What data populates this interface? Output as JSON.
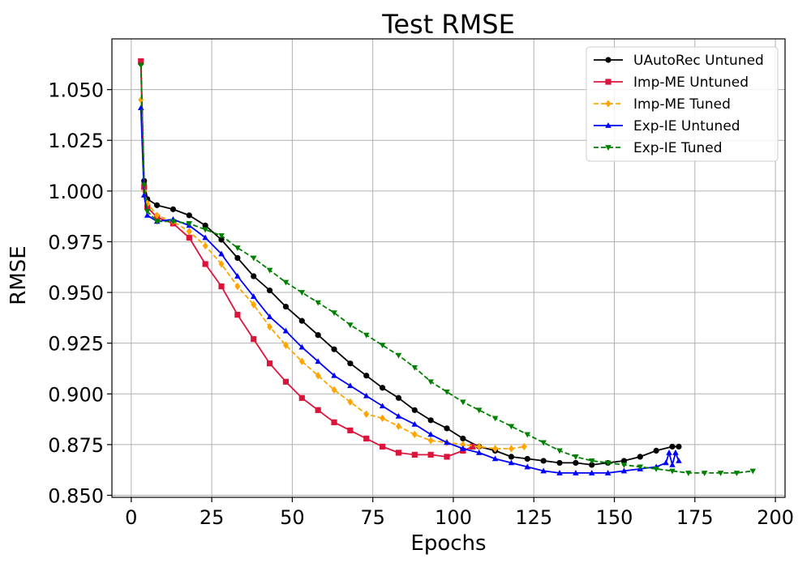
{
  "chart_data": {
    "type": "line",
    "title": "Test RMSE",
    "xlabel": "Epochs",
    "ylabel": "RMSE",
    "xlim": [
      -6,
      203
    ],
    "ylim": [
      0.849,
      1.075
    ],
    "xticks": [
      0,
      25,
      50,
      75,
      100,
      125,
      150,
      175,
      200
    ],
    "xtick_labels": [
      "0",
      "25",
      "50",
      "75",
      "100",
      "125",
      "150",
      "175",
      "200"
    ],
    "yticks": [
      0.85,
      0.875,
      0.9,
      0.925,
      0.95,
      0.975,
      1.0,
      1.025,
      1.05
    ],
    "ytick_labels": [
      "0.850",
      "0.875",
      "0.900",
      "0.925",
      "0.950",
      "0.975",
      "1.000",
      "1.025",
      "1.050"
    ],
    "grid": true,
    "legend_position": "top-right",
    "series": [
      {
        "name": "UAutoRec Untuned",
        "color": "#000000",
        "dash": "solid",
        "marker": "circle",
        "x": [
          3,
          4,
          5,
          8,
          13,
          18,
          23,
          28,
          33,
          38,
          43,
          48,
          53,
          58,
          63,
          68,
          73,
          78,
          83,
          88,
          93,
          98,
          103,
          108,
          113,
          118,
          123,
          128,
          133,
          138,
          143,
          148,
          153,
          158,
          163,
          168,
          170
        ],
        "y": [
          1.063,
          1.005,
          0.996,
          0.993,
          0.991,
          0.988,
          0.983,
          0.976,
          0.967,
          0.958,
          0.951,
          0.943,
          0.936,
          0.929,
          0.922,
          0.915,
          0.909,
          0.903,
          0.898,
          0.892,
          0.887,
          0.883,
          0.878,
          0.874,
          0.872,
          0.869,
          0.868,
          0.867,
          0.866,
          0.866,
          0.865,
          0.866,
          0.867,
          0.869,
          0.872,
          0.874,
          0.874
        ]
      },
      {
        "name": "Imp-ME Untuned",
        "color": "#dc143c",
        "dash": "solid",
        "marker": "square",
        "x": [
          3,
          4,
          5,
          8,
          13,
          18,
          23,
          28,
          33,
          38,
          43,
          48,
          53,
          58,
          63,
          68,
          73,
          78,
          83,
          88,
          93,
          98,
          103,
          106
        ],
        "y": [
          1.064,
          1.002,
          0.992,
          0.987,
          0.984,
          0.977,
          0.964,
          0.953,
          0.939,
          0.927,
          0.915,
          0.906,
          0.898,
          0.892,
          0.886,
          0.882,
          0.878,
          0.874,
          0.871,
          0.87,
          0.87,
          0.869,
          0.872,
          0.874
        ]
      },
      {
        "name": "Imp-ME Tuned",
        "color": "#ffa500",
        "dash": "dashed",
        "marker": "diamond",
        "x": [
          3,
          4,
          5,
          8,
          13,
          18,
          23,
          28,
          33,
          38,
          43,
          48,
          53,
          58,
          63,
          68,
          73,
          78,
          83,
          88,
          93,
          98,
          103,
          108,
          113,
          118,
          122
        ],
        "y": [
          1.045,
          1.0,
          0.994,
          0.988,
          0.985,
          0.98,
          0.973,
          0.964,
          0.953,
          0.944,
          0.933,
          0.924,
          0.916,
          0.909,
          0.902,
          0.896,
          0.89,
          0.888,
          0.884,
          0.88,
          0.877,
          0.876,
          0.875,
          0.874,
          0.873,
          0.873,
          0.874
        ]
      },
      {
        "name": "Exp-IE Untuned",
        "color": "#0000ff",
        "dash": "solid",
        "marker": "triangle-up",
        "x": [
          3,
          4,
          5,
          8,
          13,
          18,
          23,
          28,
          33,
          38,
          43,
          48,
          53,
          58,
          63,
          68,
          73,
          78,
          83,
          88,
          93,
          98,
          103,
          108,
          113,
          118,
          123,
          128,
          133,
          138,
          143,
          148,
          153,
          158,
          163,
          166,
          167,
          168,
          169,
          170
        ],
        "y": [
          1.041,
          0.998,
          0.988,
          0.985,
          0.986,
          0.983,
          0.977,
          0.969,
          0.958,
          0.948,
          0.938,
          0.931,
          0.923,
          0.916,
          0.909,
          0.904,
          0.899,
          0.894,
          0.889,
          0.885,
          0.88,
          0.876,
          0.873,
          0.871,
          0.868,
          0.866,
          0.864,
          0.862,
          0.861,
          0.861,
          0.861,
          0.861,
          0.862,
          0.863,
          0.864,
          0.866,
          0.871,
          0.865,
          0.871,
          0.867
        ]
      },
      {
        "name": "Exp-IE Tuned",
        "color": "#008000",
        "dash": "dashed",
        "marker": "triangle-down",
        "x": [
          3,
          4,
          5,
          8,
          13,
          18,
          23,
          28,
          33,
          38,
          43,
          48,
          53,
          58,
          63,
          68,
          73,
          78,
          83,
          88,
          93,
          98,
          103,
          108,
          113,
          118,
          123,
          128,
          133,
          138,
          143,
          148,
          153,
          158,
          163,
          168,
          173,
          178,
          183,
          188,
          193
        ],
        "y": [
          1.062,
          1.003,
          0.99,
          0.985,
          0.985,
          0.984,
          0.981,
          0.978,
          0.972,
          0.967,
          0.961,
          0.955,
          0.95,
          0.945,
          0.94,
          0.934,
          0.929,
          0.924,
          0.919,
          0.913,
          0.906,
          0.901,
          0.896,
          0.892,
          0.888,
          0.884,
          0.88,
          0.876,
          0.872,
          0.869,
          0.867,
          0.866,
          0.865,
          0.864,
          0.863,
          0.862,
          0.861,
          0.861,
          0.861,
          0.861,
          0.862
        ]
      }
    ]
  }
}
